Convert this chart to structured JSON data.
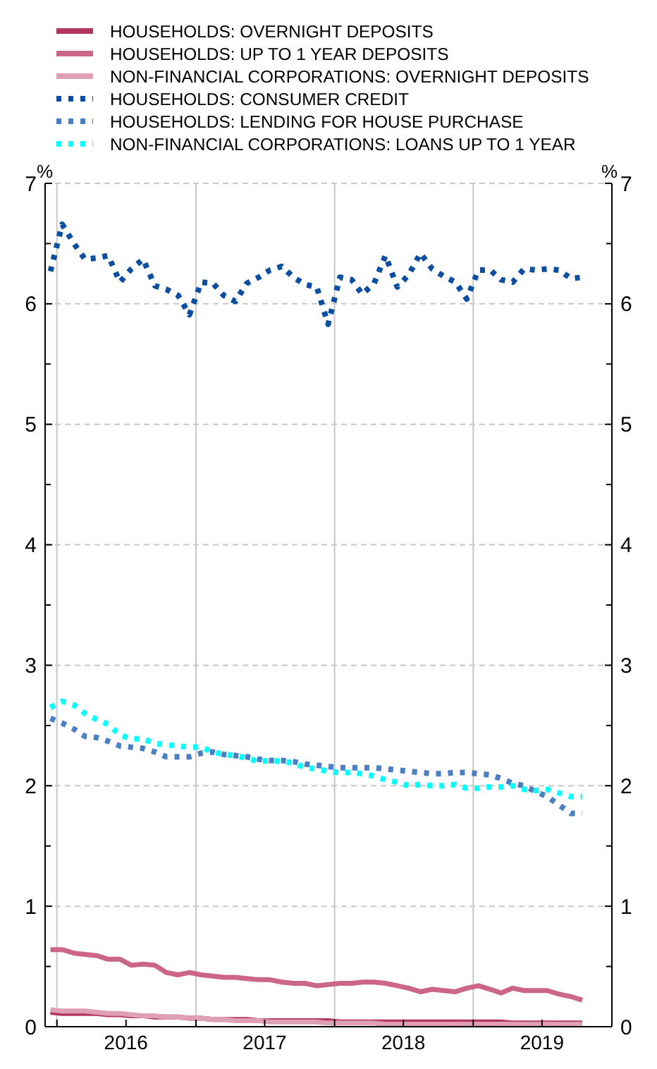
{
  "chart_data": {
    "type": "line",
    "ylabel": "%",
    "y2label": "%",
    "x": [
      "2015-12-15",
      "2016-01-15",
      "2016-02-15",
      "2016-03-15",
      "2016-04-15",
      "2016-05-15",
      "2016-06-15",
      "2016-07-15",
      "2016-08-15",
      "2016-09-15",
      "2016-10-15",
      "2016-11-15",
      "2016-12-15",
      "2017-01-15",
      "2017-02-15",
      "2017-03-15",
      "2017-04-15",
      "2017-05-15",
      "2017-06-15",
      "2017-07-15",
      "2017-08-15",
      "2017-09-15",
      "2017-10-15",
      "2017-11-15",
      "2017-12-15",
      "2018-01-15",
      "2018-02-15",
      "2018-03-15",
      "2018-04-15",
      "2018-05-15",
      "2018-06-15",
      "2018-07-15",
      "2018-08-15",
      "2018-09-15",
      "2018-10-15",
      "2018-11-15",
      "2018-12-15",
      "2019-01-15",
      "2019-02-15",
      "2019-03-15",
      "2019-04-15",
      "2019-05-15",
      "2019-06-15",
      "2019-07-15",
      "2019-08-15",
      "2019-09-15",
      "2019-10-15"
    ],
    "xlim": [
      "2015-12-01",
      "2020-01-01"
    ],
    "xticks": [
      {
        "value": "2016-01-01",
        "label": null
      },
      {
        "value": "2016-07-01",
        "label": "2016"
      },
      {
        "value": "2017-01-01",
        "label": null
      },
      {
        "value": "2017-07-01",
        "label": "2017"
      },
      {
        "value": "2018-01-01",
        "label": null
      },
      {
        "value": "2018-07-01",
        "label": "2018"
      },
      {
        "value": "2019-01-01",
        "label": null
      },
      {
        "value": "2019-07-01",
        "label": "2019"
      }
    ],
    "ylim": [
      0,
      7
    ],
    "yticks": [
      0,
      1,
      2,
      3,
      4,
      5,
      6,
      7
    ],
    "y2lim": [
      0,
      7
    ],
    "y2ticks": [
      0,
      1,
      2,
      3,
      4,
      5,
      6,
      7
    ],
    "grid": true,
    "legend": "top",
    "series": [
      {
        "name": "HOUSEHOLDS: OVERNIGHT DEPOSITS",
        "color": "#b5365e",
        "line_style": "solid",
        "values": [
          0.12,
          0.11,
          0.11,
          0.11,
          0.11,
          0.1,
          0.1,
          0.09,
          0.09,
          0.08,
          0.08,
          0.08,
          0.07,
          0.07,
          0.06,
          0.06,
          0.06,
          0.06,
          0.05,
          0.05,
          0.05,
          0.05,
          0.05,
          0.05,
          0.05,
          0.04,
          0.04,
          0.04,
          0.04,
          0.04,
          0.04,
          0.04,
          0.04,
          0.04,
          0.04,
          0.04,
          0.04,
          0.04,
          0.04,
          0.04,
          0.03,
          0.03,
          0.03,
          0.03,
          0.03,
          0.03,
          0.03
        ]
      },
      {
        "name": "HOUSEHOLDS: UP TO 1 YEAR DEPOSITS",
        "color": "#cc6688",
        "line_style": "solid",
        "values": [
          0.64,
          0.64,
          0.61,
          0.6,
          0.59,
          0.56,
          0.56,
          0.51,
          0.52,
          0.51,
          0.45,
          0.43,
          0.45,
          0.43,
          0.42,
          0.41,
          0.41,
          0.4,
          0.39,
          0.39,
          0.37,
          0.36,
          0.36,
          0.34,
          0.35,
          0.36,
          0.36,
          0.37,
          0.37,
          0.36,
          0.34,
          0.32,
          0.29,
          0.31,
          0.3,
          0.29,
          0.32,
          0.34,
          0.31,
          0.28,
          0.32,
          0.3,
          0.3,
          0.3,
          0.27,
          0.25,
          0.22
        ]
      },
      {
        "name": "NON-FINANCIAL CORPORATIONS: OVERNIGHT DEPOSITS",
        "color": "#e0a0b4",
        "line_style": "solid",
        "values": [
          0.14,
          0.13,
          0.13,
          0.13,
          0.12,
          0.11,
          0.11,
          0.1,
          0.09,
          0.09,
          0.08,
          0.08,
          0.07,
          0.07,
          0.06,
          0.06,
          0.05,
          0.05,
          0.05,
          0.04,
          0.04,
          0.04,
          0.04,
          0.04,
          0.03,
          0.03,
          0.03,
          0.03,
          0.03,
          0.02,
          0.02,
          0.02,
          0.02,
          0.02,
          0.02,
          0.02,
          0.02,
          0.02,
          0.02,
          0.02,
          0.02,
          0.02,
          0.02,
          0.02,
          0.02,
          0.02,
          0.02
        ]
      },
      {
        "name": "HOUSEHOLDS: CONSUMER CREDIT",
        "color": "#0b4ea2",
        "line_style": "dotted",
        "values": [
          6.27,
          6.66,
          6.5,
          6.37,
          6.38,
          6.4,
          6.18,
          6.29,
          6.37,
          6.15,
          6.12,
          6.07,
          5.91,
          6.18,
          6.17,
          6.07,
          6.02,
          6.17,
          6.22,
          6.28,
          6.31,
          6.22,
          6.16,
          6.14,
          5.83,
          6.22,
          6.2,
          6.08,
          6.17,
          6.4,
          6.14,
          6.24,
          6.42,
          6.29,
          6.23,
          6.18,
          6.04,
          6.28,
          6.28,
          6.2,
          6.18,
          6.29,
          6.28,
          6.29,
          6.28,
          6.21,
          6.22
        ]
      },
      {
        "name": "HOUSEHOLDS: LENDING FOR HOUSE PURCHASE",
        "color": "#4a7fc1",
        "line_style": "dotted",
        "values": [
          2.56,
          2.52,
          2.47,
          2.41,
          2.4,
          2.37,
          2.33,
          2.32,
          2.31,
          2.28,
          2.24,
          2.24,
          2.24,
          2.27,
          2.28,
          2.26,
          2.25,
          2.24,
          2.22,
          2.21,
          2.21,
          2.2,
          2.18,
          2.17,
          2.16,
          2.15,
          2.15,
          2.15,
          2.15,
          2.14,
          2.13,
          2.12,
          2.11,
          2.1,
          2.1,
          2.11,
          2.11,
          2.1,
          2.09,
          2.06,
          2.02,
          2.0,
          1.95,
          1.91,
          1.84,
          1.77,
          1.77
        ]
      },
      {
        "name": "NON-FINANCIAL CORPORATIONS: LOANS UP TO 1 YEAR",
        "color": "#00ffff",
        "line_style": "dotted",
        "values": [
          2.65,
          2.7,
          2.67,
          2.6,
          2.55,
          2.51,
          2.42,
          2.39,
          2.39,
          2.35,
          2.34,
          2.33,
          2.32,
          2.32,
          2.28,
          2.26,
          2.25,
          2.23,
          2.2,
          2.21,
          2.2,
          2.19,
          2.15,
          2.14,
          2.12,
          2.11,
          2.11,
          2.1,
          2.08,
          2.05,
          2.03,
          2.0,
          2.01,
          2.0,
          2.0,
          2.01,
          1.98,
          1.98,
          1.99,
          1.99,
          2.0,
          1.97,
          1.96,
          1.97,
          1.94,
          1.91,
          1.91
        ]
      }
    ]
  }
}
